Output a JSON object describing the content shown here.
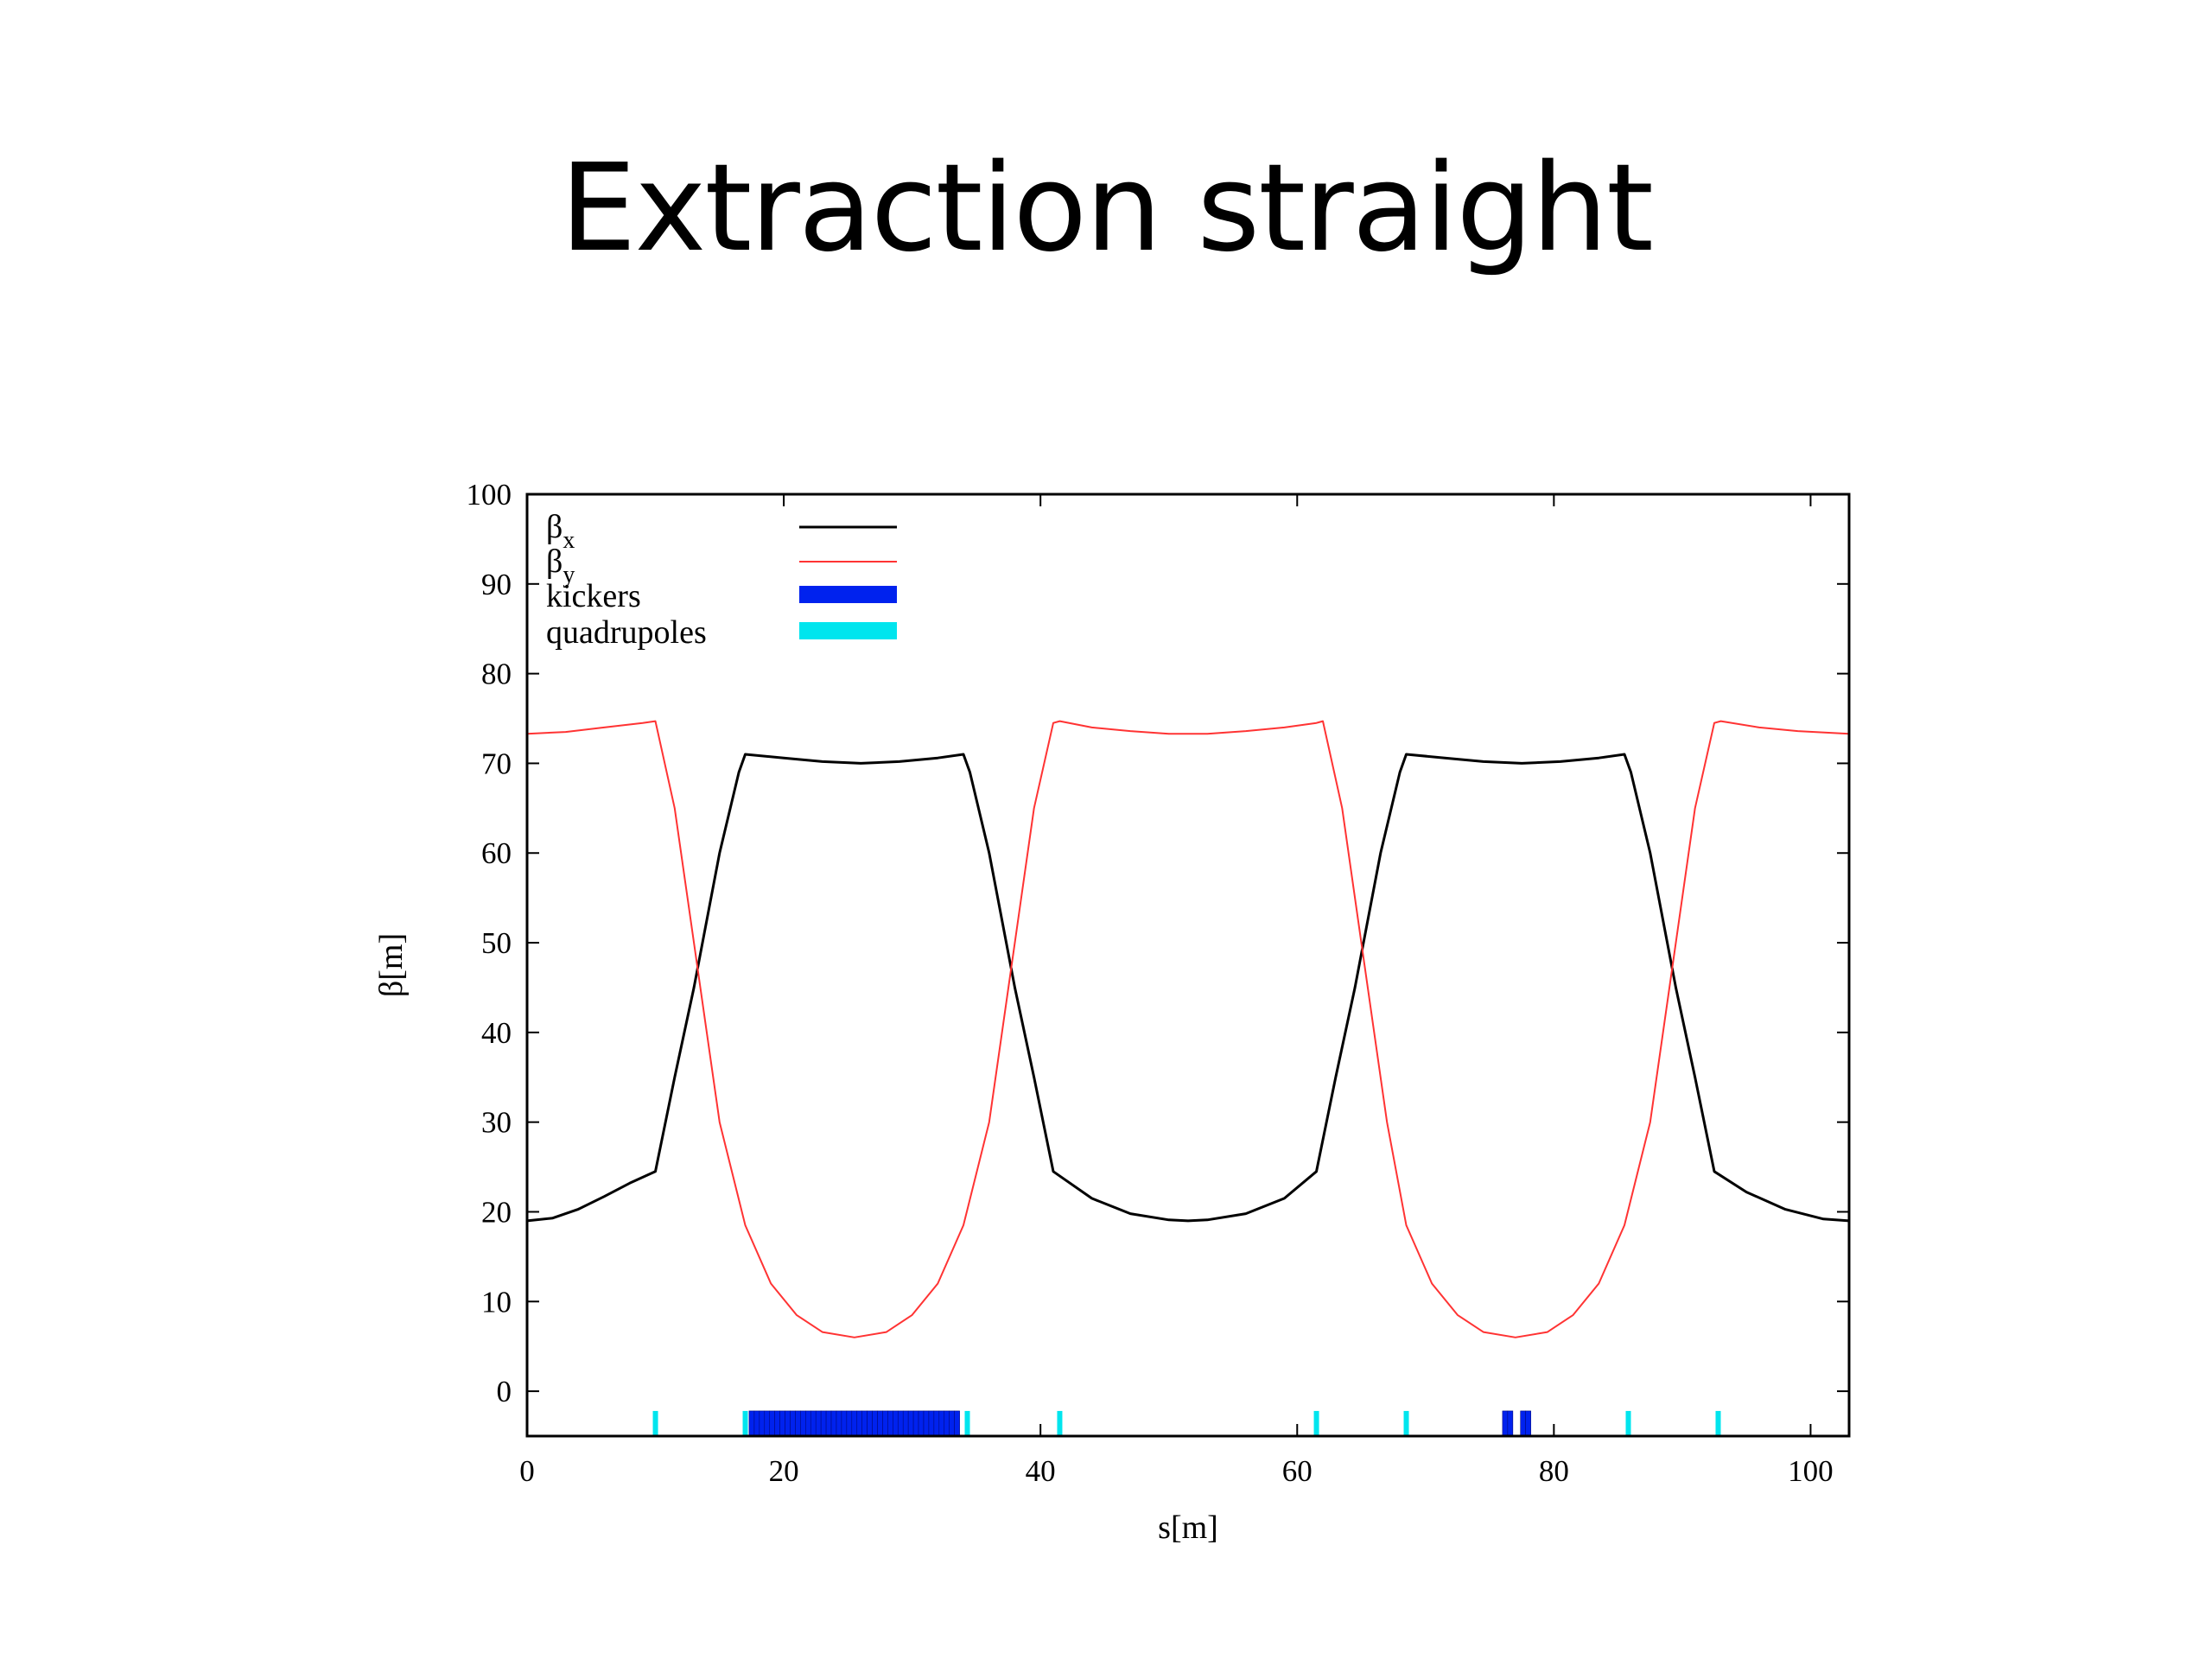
{
  "slide": {
    "title": "Extraction straight"
  },
  "chart_data": {
    "type": "line",
    "xlabel": "s[m]",
    "ylabel": "β[m]",
    "xlim": [
      0,
      103
    ],
    "ylim": [
      -5,
      100
    ],
    "xticks": [
      0,
      20,
      40,
      60,
      80,
      100
    ],
    "yticks": [
      0,
      10,
      20,
      30,
      40,
      50,
      60,
      70,
      80,
      90,
      100
    ],
    "legend_position": "top-left",
    "series": [
      {
        "name": "βx",
        "color": "#000000",
        "x": [
          0,
          2,
          4,
          6,
          8,
          10,
          11.5,
          13,
          15,
          16.5,
          17,
          20,
          23,
          26,
          29,
          32,
          34,
          34.5,
          36,
          38,
          39.5,
          41,
          44,
          47,
          50,
          51.5,
          53,
          56,
          59,
          61.5,
          63,
          64.5,
          66.5,
          68,
          68.5,
          71.5,
          74.5,
          77.5,
          80.5,
          83.5,
          85.5,
          86,
          87.5,
          89.5,
          91,
          92.5,
          95,
          98,
          101,
          103
        ],
        "y": [
          19,
          19.3,
          20.3,
          21.7,
          23.2,
          24.5,
          35,
          45,
          60,
          69,
          71,
          70.6,
          70.2,
          70,
          70.2,
          70.6,
          71,
          69,
          60,
          45,
          35,
          24.5,
          21.5,
          19.8,
          19.1,
          19,
          19.1,
          19.8,
          21.5,
          24.5,
          35,
          45,
          60,
          69,
          71,
          70.6,
          70.2,
          70,
          70.2,
          70.6,
          71,
          69,
          60,
          45,
          35,
          24.5,
          22.2,
          20.3,
          19.2,
          19
        ]
      },
      {
        "name": "βy",
        "color": "#ff3333",
        "x": [
          0,
          3,
          6,
          9,
          10,
          11.5,
          13,
          15,
          17,
          19,
          21,
          23,
          25.5,
          28,
          30,
          32,
          34,
          36,
          38,
          39.5,
          41,
          41.5,
          44,
          47,
          50,
          51.5,
          53,
          56,
          59,
          61.5,
          62,
          63.5,
          65,
          67,
          68.5,
          70.5,
          72.5,
          74.5,
          77,
          79.5,
          81.5,
          83.5,
          85.5,
          87.5,
          89.5,
          91,
          92.5,
          93,
          96,
          99,
          103
        ],
        "y": [
          73.3,
          73.5,
          74,
          74.5,
          74.7,
          65,
          50,
          30,
          18.5,
          12,
          8.5,
          6.6,
          6,
          6.6,
          8.5,
          12,
          18.5,
          30,
          50,
          65,
          74.5,
          74.7,
          74,
          73.6,
          73.3,
          73.3,
          73.3,
          73.6,
          74,
          74.5,
          74.7,
          65,
          50,
          30,
          18.5,
          12,
          8.5,
          6.6,
          6,
          6.6,
          8.5,
          12,
          18.5,
          30,
          50,
          65,
          74.5,
          74.7,
          74,
          73.6,
          73.3
        ]
      }
    ],
    "markers": [
      {
        "name": "kickers",
        "color": "#0022ee",
        "positions": [
          17.5,
          17.9,
          18.3,
          18.7,
          19.1,
          19.5,
          19.9,
          20.3,
          20.7,
          21.1,
          21.5,
          21.9,
          22.3,
          22.7,
          23.1,
          23.5,
          23.9,
          24.3,
          24.7,
          25.1,
          25.5,
          25.9,
          26.3,
          26.7,
          27.1,
          27.5,
          27.9,
          28.3,
          28.7,
          29.1,
          29.5,
          29.9,
          30.3,
          30.7,
          31.1,
          31.5,
          31.9,
          32.3,
          32.7,
          33.1,
          33.5,
          76.2,
          76.6,
          77.6,
          78.0
        ]
      },
      {
        "name": "quadrupoles",
        "color": "#00e5ee",
        "positions": [
          10,
          17,
          34.3,
          41.5,
          61.5,
          68.5,
          85.8,
          92.8
        ]
      }
    ]
  }
}
